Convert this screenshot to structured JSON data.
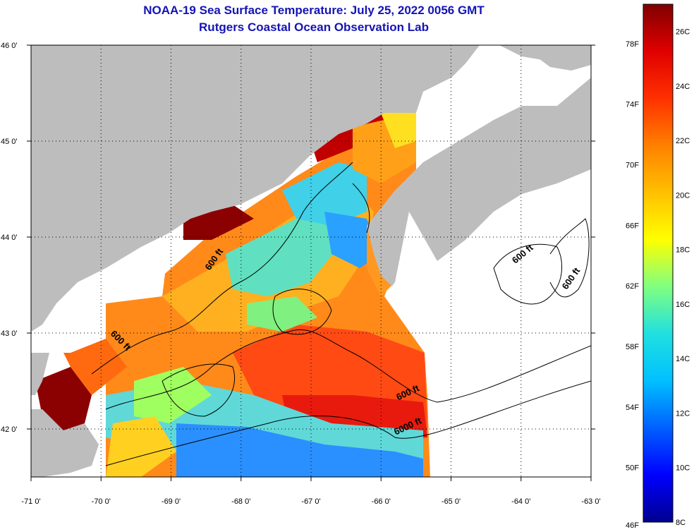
{
  "header": {
    "title": "NOAA-19 Sea Surface Temperature:  July 25, 2022 0056 GMT",
    "subtitle": "Rutgers Coastal Ocean Observation Lab"
  },
  "map": {
    "lon_range": [
      -71,
      -63
    ],
    "lat_range": [
      41.5,
      46
    ],
    "lon_ticks": [
      {
        "value": -71,
        "label": "-71 0'"
      },
      {
        "value": -70,
        "label": "-70 0'"
      },
      {
        "value": -69,
        "label": "-69 0'"
      },
      {
        "value": -68,
        "label": "-68 0'"
      },
      {
        "value": -67,
        "label": "-67 0'"
      },
      {
        "value": -66,
        "label": "-66 0'"
      },
      {
        "value": -65,
        "label": "-65 0'"
      },
      {
        "value": -64,
        "label": "-64 0'"
      },
      {
        "value": -63,
        "label": "-63 0'"
      }
    ],
    "lat_ticks": [
      {
        "value": 46,
        "label": "46 0'"
      },
      {
        "value": 45,
        "label": "45 0'"
      },
      {
        "value": 44,
        "label": "44 0'"
      },
      {
        "value": 43,
        "label": "43 0'"
      },
      {
        "value": 42,
        "label": "42 0'"
      }
    ],
    "contour_labels": [
      {
        "text": "600 ft",
        "lon": -68.35,
        "lat": 43.75,
        "rotation": -55
      },
      {
        "text": "600 ft",
        "lon": -69.75,
        "lat": 42.9,
        "rotation": 45
      },
      {
        "text": "600 ft",
        "lon": -63.95,
        "lat": 43.8,
        "rotation": -40
      },
      {
        "text": "600 ft",
        "lon": -63.25,
        "lat": 43.55,
        "rotation": -55
      },
      {
        "text": "600 ft",
        "lon": -65.6,
        "lat": 42.35,
        "rotation": -25
      },
      {
        "text": "6000 ft",
        "lon": -65.6,
        "lat": 42.0,
        "rotation": -25
      }
    ],
    "colors": {
      "land": "#bdbdbd",
      "ocean_nodata": "#ffffff",
      "contour": "#000000",
      "grid": "#000000"
    }
  },
  "colorbar": {
    "fahrenheit_labels": [
      "78F",
      "74F",
      "70F",
      "66F",
      "62F",
      "58F",
      "54F",
      "50F",
      "46F"
    ],
    "celsius_labels": [
      "26C",
      "24C",
      "22C",
      "20C",
      "18C",
      "16C",
      "14C",
      "12C",
      "10C",
      "8C"
    ],
    "range_c": [
      8,
      27
    ],
    "gradient": [
      "#00008f",
      "#0000ff",
      "#0060ff",
      "#00c0ff",
      "#20e0e0",
      "#80ff80",
      "#ffff00",
      "#ffc000",
      "#ff8000",
      "#ff3000",
      "#e00000",
      "#800000"
    ]
  }
}
